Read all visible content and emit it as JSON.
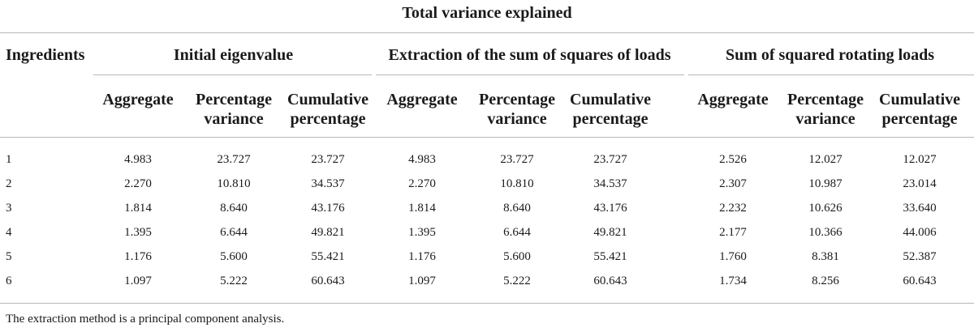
{
  "table": {
    "title": "Total variance explained",
    "row_header": "Ingredients",
    "groups": [
      "Initial eigenvalue",
      "Extraction of the sum of squares of loads",
      "Sum of squared rotating loads"
    ],
    "subheaders": [
      [
        "Aggregate"
      ],
      [
        "Percentage",
        "variance"
      ],
      [
        "Cumulative",
        "percentage"
      ],
      [
        "Aggregate"
      ],
      [
        "Percentage",
        "variance"
      ],
      [
        "Cumulative",
        "percentage"
      ],
      [
        "Aggregate"
      ],
      [
        "Percentage",
        "variance"
      ],
      [
        "Cumulative",
        "percentage"
      ]
    ],
    "rows": [
      {
        "label": "1",
        "values": [
          "4.983",
          "23.727",
          "23.727",
          "4.983",
          "23.727",
          "23.727",
          "2.526",
          "12.027",
          "12.027"
        ]
      },
      {
        "label": "2",
        "values": [
          "2.270",
          "10.810",
          "34.537",
          "2.270",
          "10.810",
          "34.537",
          "2.307",
          "10.987",
          "23.014"
        ]
      },
      {
        "label": "3",
        "values": [
          "1.814",
          "8.640",
          "43.176",
          "1.814",
          "8.640",
          "43.176",
          "2.232",
          "10.626",
          "33.640"
        ]
      },
      {
        "label": "4",
        "values": [
          "1.395",
          "6.644",
          "49.821",
          "1.395",
          "6.644",
          "49.821",
          "2.177",
          "10.366",
          "44.006"
        ]
      },
      {
        "label": "5",
        "values": [
          "1.176",
          "5.600",
          "55.421",
          "1.176",
          "5.600",
          "55.421",
          "1.760",
          "8.381",
          "52.387"
        ]
      },
      {
        "label": "6",
        "values": [
          "1.097",
          "5.222",
          "60.643",
          "1.097",
          "5.222",
          "60.643",
          "1.734",
          "8.256",
          "60.643"
        ]
      }
    ],
    "footnote": "The extraction method is a principal component analysis."
  }
}
